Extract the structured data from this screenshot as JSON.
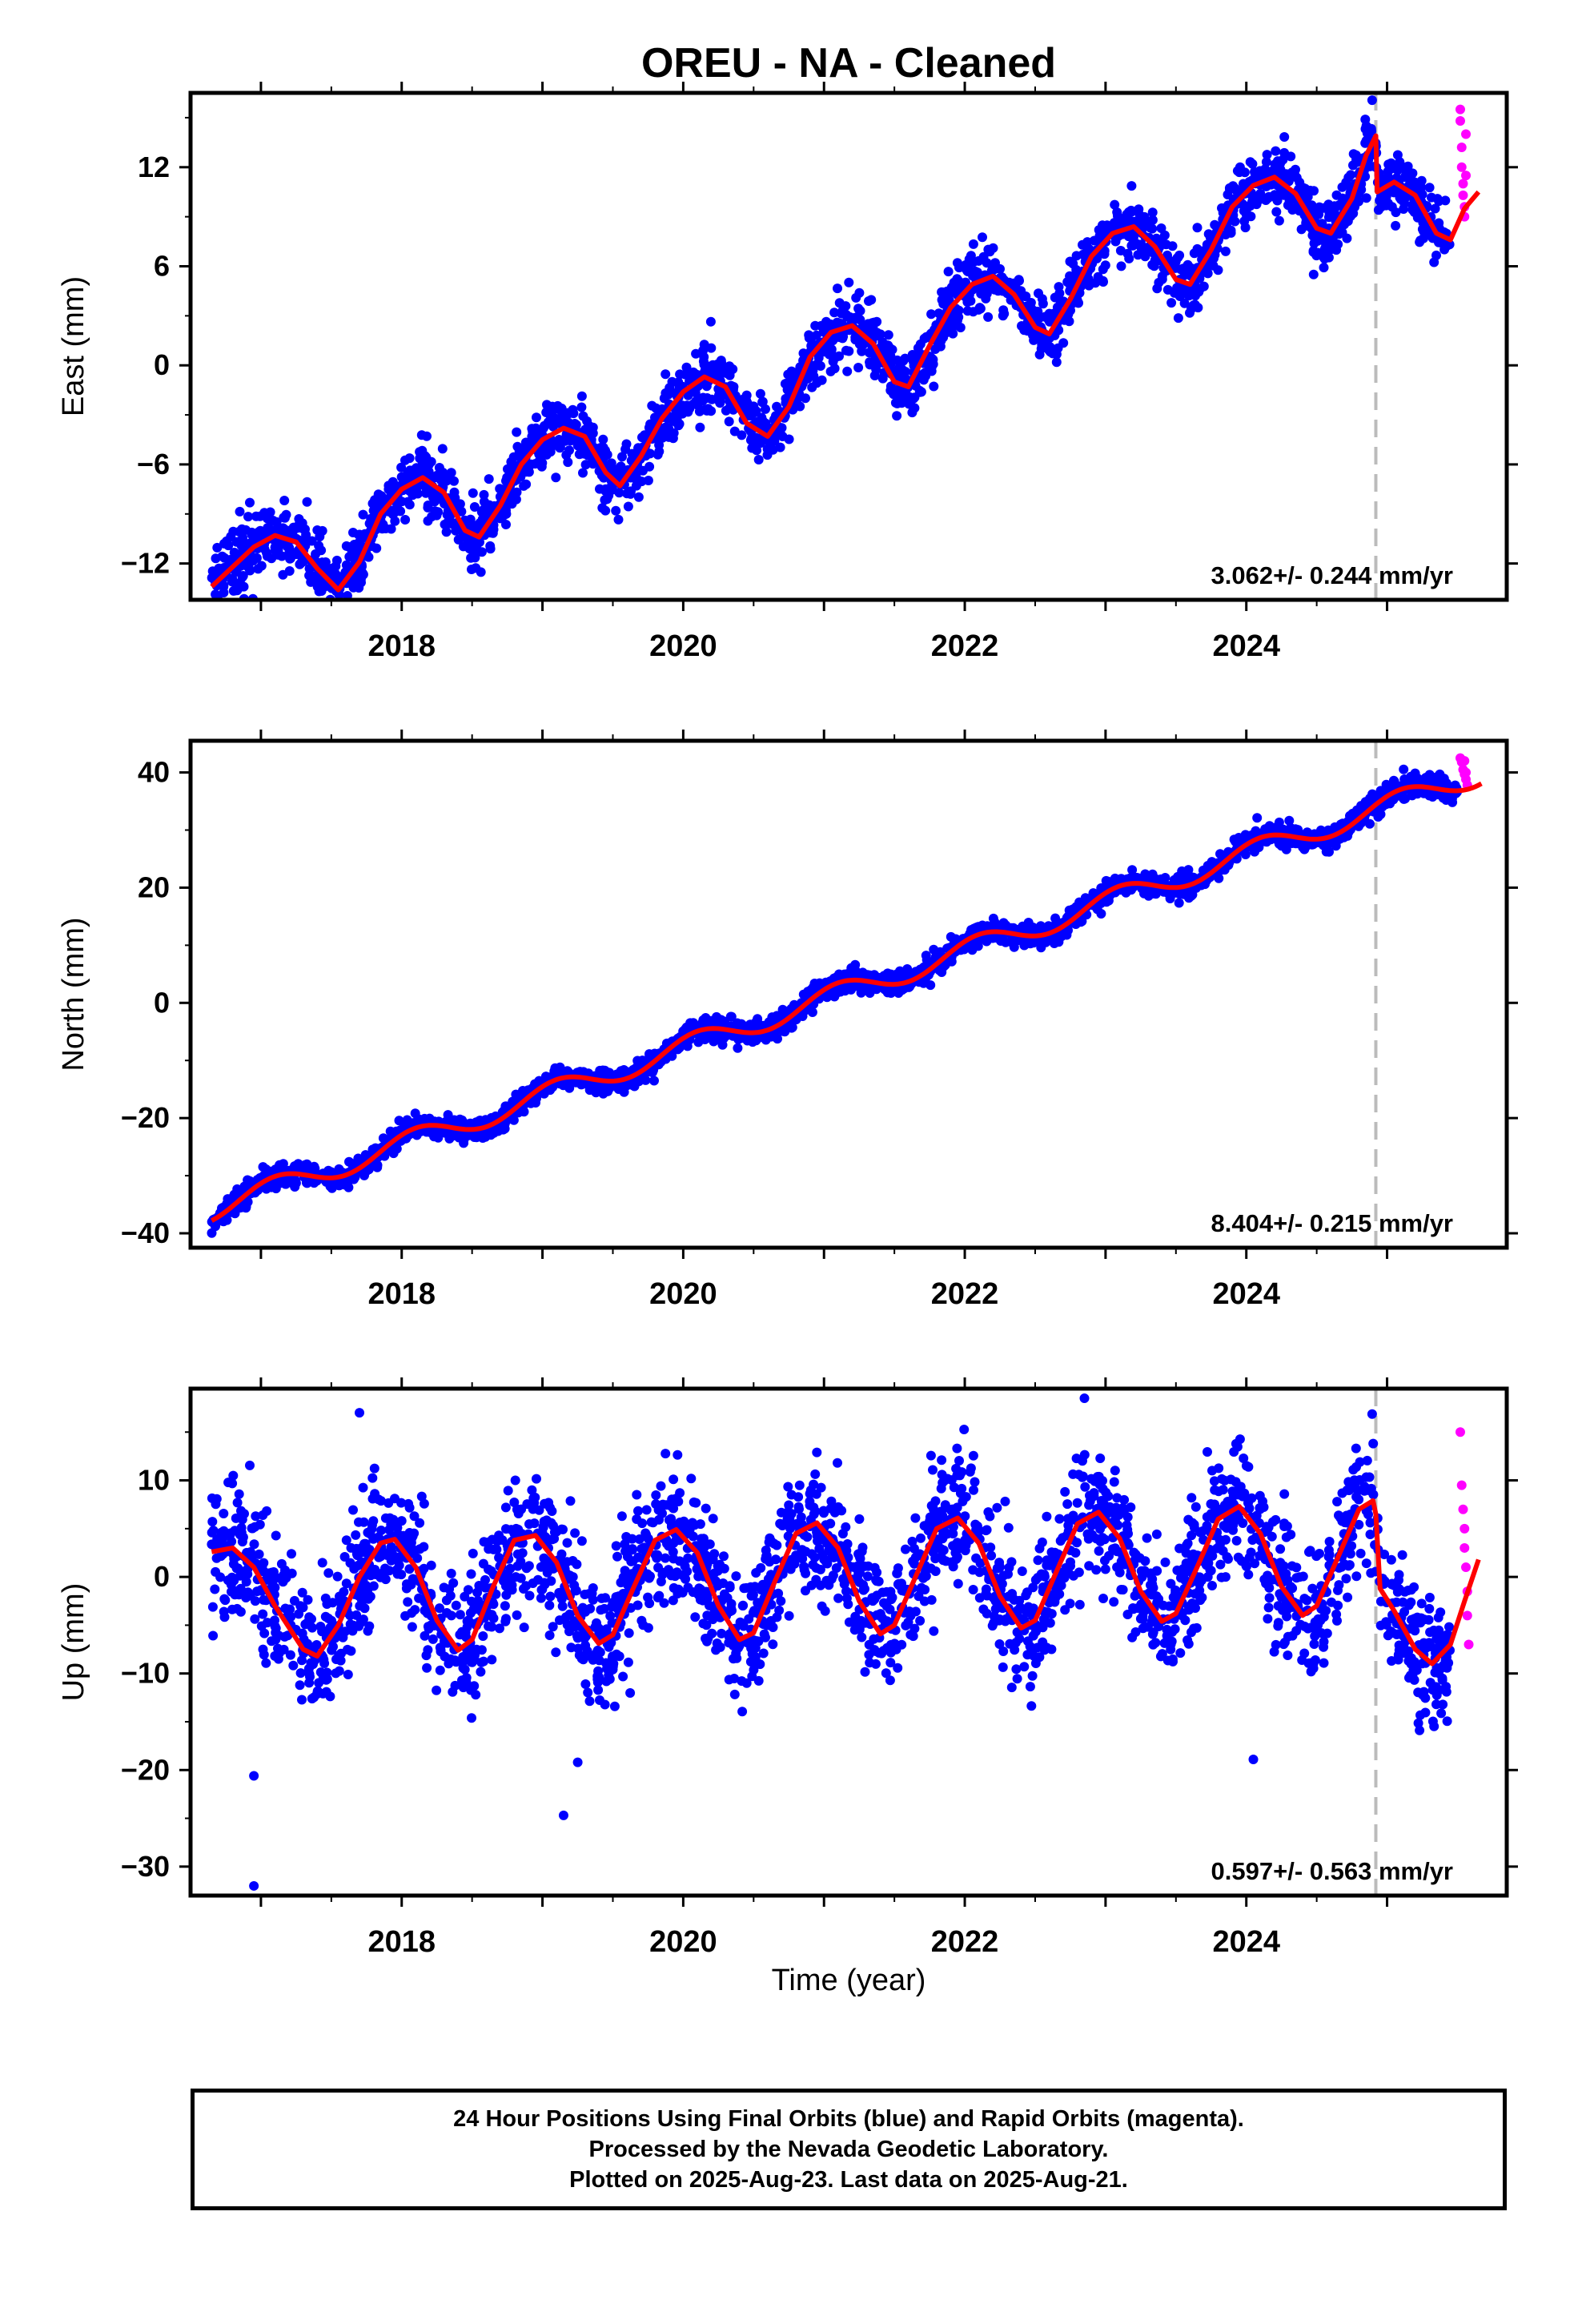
{
  "title": "OREU  - NA - Cleaned",
  "colors": {
    "final_orbits": "#0000ff",
    "rapid_orbits": "#ff00ff",
    "model": "#ff0000",
    "event_line": "#bbbbbb",
    "frame": "#000000"
  },
  "chart_data": [
    {
      "type": "scatter",
      "component": "east",
      "ylabel": "East (mm)",
      "xlim": [
        2016.5,
        2025.85
      ],
      "ylim": [
        -14.2,
        16.5
      ],
      "yticks": [
        -12,
        -6,
        0,
        6,
        12
      ],
      "xticks": [
        2018,
        2020,
        2022,
        2024
      ],
      "velocity_text": "3.062+/- 0.244 mm/yr",
      "event_line_x": 2024.92,
      "series": [
        {
          "name": "Final Orbits (blue)",
          "color": "#0000ff",
          "x_range": [
            2016.65,
            2025.45
          ],
          "trend": {
            "a": -11.8,
            "b": 2.45,
            "c": 2.3
          },
          "amplitude": 2.3,
          "noise": 0.9,
          "count": 2500
        },
        {
          "name": "Rapid Orbits (magenta)",
          "color": "#ff00ff",
          "points": [
            [
              2025.52,
              15.5
            ],
            [
              2025.52,
              14.8
            ],
            [
              2025.53,
              13.2
            ],
            [
              2025.53,
              12.0
            ],
            [
              2025.54,
              11.0
            ],
            [
              2025.54,
              10.3
            ],
            [
              2025.55,
              9.6
            ],
            [
              2025.55,
              9.0
            ],
            [
              2025.56,
              14.0
            ],
            [
              2025.56,
              11.5
            ]
          ]
        }
      ],
      "model_line": [
        [
          2016.65,
          -13.4
        ],
        [
          2016.8,
          -12.2
        ],
        [
          2016.95,
          -11.0
        ],
        [
          2017.1,
          -10.3
        ],
        [
          2017.25,
          -10.7
        ],
        [
          2017.4,
          -12.3
        ],
        [
          2017.55,
          -13.6
        ],
        [
          2017.7,
          -11.9
        ],
        [
          2017.85,
          -9.0
        ],
        [
          2018.0,
          -7.5
        ],
        [
          2018.15,
          -6.8
        ],
        [
          2018.3,
          -7.7
        ],
        [
          2018.45,
          -10.0
        ],
        [
          2018.55,
          -10.4
        ],
        [
          2018.7,
          -8.5
        ],
        [
          2018.85,
          -6.0
        ],
        [
          2019.0,
          -4.5
        ],
        [
          2019.15,
          -3.8
        ],
        [
          2019.3,
          -4.3
        ],
        [
          2019.45,
          -6.5
        ],
        [
          2019.55,
          -7.3
        ],
        [
          2019.7,
          -5.5
        ],
        [
          2019.85,
          -3.2
        ],
        [
          2020.0,
          -1.6
        ],
        [
          2020.15,
          -0.7
        ],
        [
          2020.3,
          -1.3
        ],
        [
          2020.45,
          -3.5
        ],
        [
          2020.6,
          -4.3
        ],
        [
          2020.75,
          -2.5
        ],
        [
          2020.9,
          0.5
        ],
        [
          2021.05,
          2.0
        ],
        [
          2021.2,
          2.4
        ],
        [
          2021.35,
          1.3
        ],
        [
          2021.5,
          -1.0
        ],
        [
          2021.6,
          -1.3
        ],
        [
          2021.75,
          1.2
        ],
        [
          2021.9,
          3.5
        ],
        [
          2022.05,
          4.9
        ],
        [
          2022.2,
          5.4
        ],
        [
          2022.35,
          4.3
        ],
        [
          2022.5,
          2.3
        ],
        [
          2022.6,
          1.9
        ],
        [
          2022.75,
          4.0
        ],
        [
          2022.9,
          6.6
        ],
        [
          2023.05,
          8.0
        ],
        [
          2023.2,
          8.4
        ],
        [
          2023.35,
          7.2
        ],
        [
          2023.5,
          5.2
        ],
        [
          2023.6,
          4.9
        ],
        [
          2023.75,
          7.0
        ],
        [
          2023.9,
          9.6
        ],
        [
          2024.05,
          10.9
        ],
        [
          2024.2,
          11.4
        ],
        [
          2024.35,
          10.4
        ],
        [
          2024.5,
          8.3
        ],
        [
          2024.6,
          8.0
        ],
        [
          2024.75,
          10.1
        ],
        [
          2024.85,
          12.7
        ],
        [
          2024.92,
          13.9
        ],
        [
          2024.93,
          10.5
        ],
        [
          2025.05,
          11.1
        ],
        [
          2025.2,
          10.3
        ],
        [
          2025.35,
          8.0
        ],
        [
          2025.45,
          7.6
        ],
        [
          2025.55,
          9.5
        ],
        [
          2025.65,
          10.5
        ]
      ]
    },
    {
      "type": "scatter",
      "component": "north",
      "ylabel": "North (mm)",
      "xlim": [
        2016.5,
        2025.85
      ],
      "ylim": [
        -42.5,
        45.5
      ],
      "yticks": [
        -40,
        -20,
        0,
        20,
        40
      ],
      "xticks": [
        2018,
        2020,
        2022,
        2024
      ],
      "velocity_text": "8.404+/- 0.215 mm/yr",
      "event_line_x": 2024.92,
      "series": [
        {
          "name": "Final Orbits (blue)",
          "color": "#0000ff",
          "x_range": [
            2016.65,
            2025.5
          ],
          "trend": {
            "a": -35.9,
            "b": 8.4,
            "c": 2.0
          },
          "amplitude": 2.0,
          "noise": 0.9,
          "count": 2500
        },
        {
          "name": "Rapid Orbits (magenta)",
          "color": "#ff00ff",
          "points": [
            [
              2025.52,
              42.5
            ],
            [
              2025.53,
              41.8
            ],
            [
              2025.54,
              40.5
            ],
            [
              2025.55,
              39.7
            ],
            [
              2025.56,
              38.8
            ],
            [
              2025.57,
              37.8
            ],
            [
              2025.55,
              42.0
            ],
            [
              2025.56,
              40.0
            ]
          ]
        }
      ],
      "model_line": "trend"
    },
    {
      "type": "scatter",
      "component": "up",
      "ylabel": "Up (mm)",
      "xlabel": "Time (year)",
      "xlim": [
        2016.5,
        2025.85
      ],
      "ylim": [
        -33,
        19.5
      ],
      "yticks": [
        -30,
        -20,
        -10,
        0,
        10
      ],
      "xticks": [
        2018,
        2020,
        2022,
        2024
      ],
      "velocity_text": "0.597+/- 0.563 mm/yr",
      "event_line_x": 2024.92,
      "series": [
        {
          "name": "Final Orbits (blue)",
          "color": "#0000ff",
          "x_range": [
            2016.65,
            2025.45
          ],
          "trend": {
            "a": -2.0,
            "b": 0.6,
            "c": 6.0
          },
          "amplitude": 6.0,
          "noise": 3.2,
          "count": 2500,
          "outliers": [
            [
              2016.95,
              -20.6
            ],
            [
              2016.95,
              -32.0
            ],
            [
              2019.15,
              -24.7
            ],
            [
              2024.05,
              -18.9
            ],
            [
              2022.85,
              18.5
            ],
            [
              2017.7,
              17.0
            ]
          ]
        },
        {
          "name": "Rapid Orbits (magenta)",
          "color": "#ff00ff",
          "points": [
            [
              2025.52,
              15.0
            ],
            [
              2025.53,
              9.5
            ],
            [
              2025.54,
              7.0
            ],
            [
              2025.55,
              5.0
            ],
            [
              2025.55,
              3.0
            ],
            [
              2025.56,
              1.0
            ],
            [
              2025.57,
              -1.5
            ],
            [
              2025.57,
              -4.0
            ],
            [
              2025.58,
              -7.0
            ]
          ]
        }
      ],
      "model_line": [
        [
          2016.65,
          2.6
        ],
        [
          2016.8,
          3.0
        ],
        [
          2016.95,
          1.0
        ],
        [
          2017.1,
          -3.0
        ],
        [
          2017.3,
          -7.5
        ],
        [
          2017.4,
          -8.2
        ],
        [
          2017.55,
          -5.0
        ],
        [
          2017.7,
          0.0
        ],
        [
          2017.85,
          3.5
        ],
        [
          2017.95,
          3.9
        ],
        [
          2018.1,
          1.0
        ],
        [
          2018.25,
          -4.5
        ],
        [
          2018.4,
          -7.6
        ],
        [
          2018.5,
          -6.5
        ],
        [
          2018.65,
          -1.0
        ],
        [
          2018.8,
          3.8
        ],
        [
          2018.95,
          4.3
        ],
        [
          2019.1,
          1.5
        ],
        [
          2019.25,
          -4.0
        ],
        [
          2019.4,
          -6.9
        ],
        [
          2019.5,
          -6.0
        ],
        [
          2019.65,
          -1.0
        ],
        [
          2019.8,
          3.8
        ],
        [
          2019.95,
          4.9
        ],
        [
          2020.1,
          2.5
        ],
        [
          2020.25,
          -3.0
        ],
        [
          2020.4,
          -6.5
        ],
        [
          2020.5,
          -5.8
        ],
        [
          2020.65,
          -0.5
        ],
        [
          2020.8,
          4.5
        ],
        [
          2020.95,
          5.6
        ],
        [
          2021.1,
          3.0
        ],
        [
          2021.25,
          -2.5
        ],
        [
          2021.4,
          -5.9
        ],
        [
          2021.5,
          -5.0
        ],
        [
          2021.65,
          0.0
        ],
        [
          2021.8,
          5.0
        ],
        [
          2021.95,
          6.1
        ],
        [
          2022.1,
          3.5
        ],
        [
          2022.25,
          -2.0
        ],
        [
          2022.4,
          -5.3
        ],
        [
          2022.5,
          -4.5
        ],
        [
          2022.65,
          0.5
        ],
        [
          2022.8,
          5.5
        ],
        [
          2022.95,
          6.7
        ],
        [
          2023.1,
          4.0
        ],
        [
          2023.25,
          -1.5
        ],
        [
          2023.4,
          -4.6
        ],
        [
          2023.5,
          -3.8
        ],
        [
          2023.65,
          1.0
        ],
        [
          2023.8,
          6.0
        ],
        [
          2023.95,
          7.3
        ],
        [
          2024.1,
          4.5
        ],
        [
          2024.25,
          -1.0
        ],
        [
          2024.4,
          -4.0
        ],
        [
          2024.5,
          -3.0
        ],
        [
          2024.65,
          2.0
        ],
        [
          2024.8,
          7.0
        ],
        [
          2024.9,
          7.9
        ],
        [
          2024.92,
          6.5
        ],
        [
          2024.95,
          -1.2
        ],
        [
          2025.05,
          -3.5
        ],
        [
          2025.2,
          -7.5
        ],
        [
          2025.32,
          -9.0
        ],
        [
          2025.45,
          -7.0
        ],
        [
          2025.55,
          -2.5
        ],
        [
          2025.65,
          1.8
        ]
      ]
    }
  ],
  "footer": {
    "line1": "24 Hour Positions Using Final Orbits (blue) and Rapid Orbits (magenta).",
    "line2": "Processed by the Nevada Geodetic Laboratory.",
    "line3": "Plotted on 2025-Aug-23. Last data on 2025-Aug-21."
  }
}
